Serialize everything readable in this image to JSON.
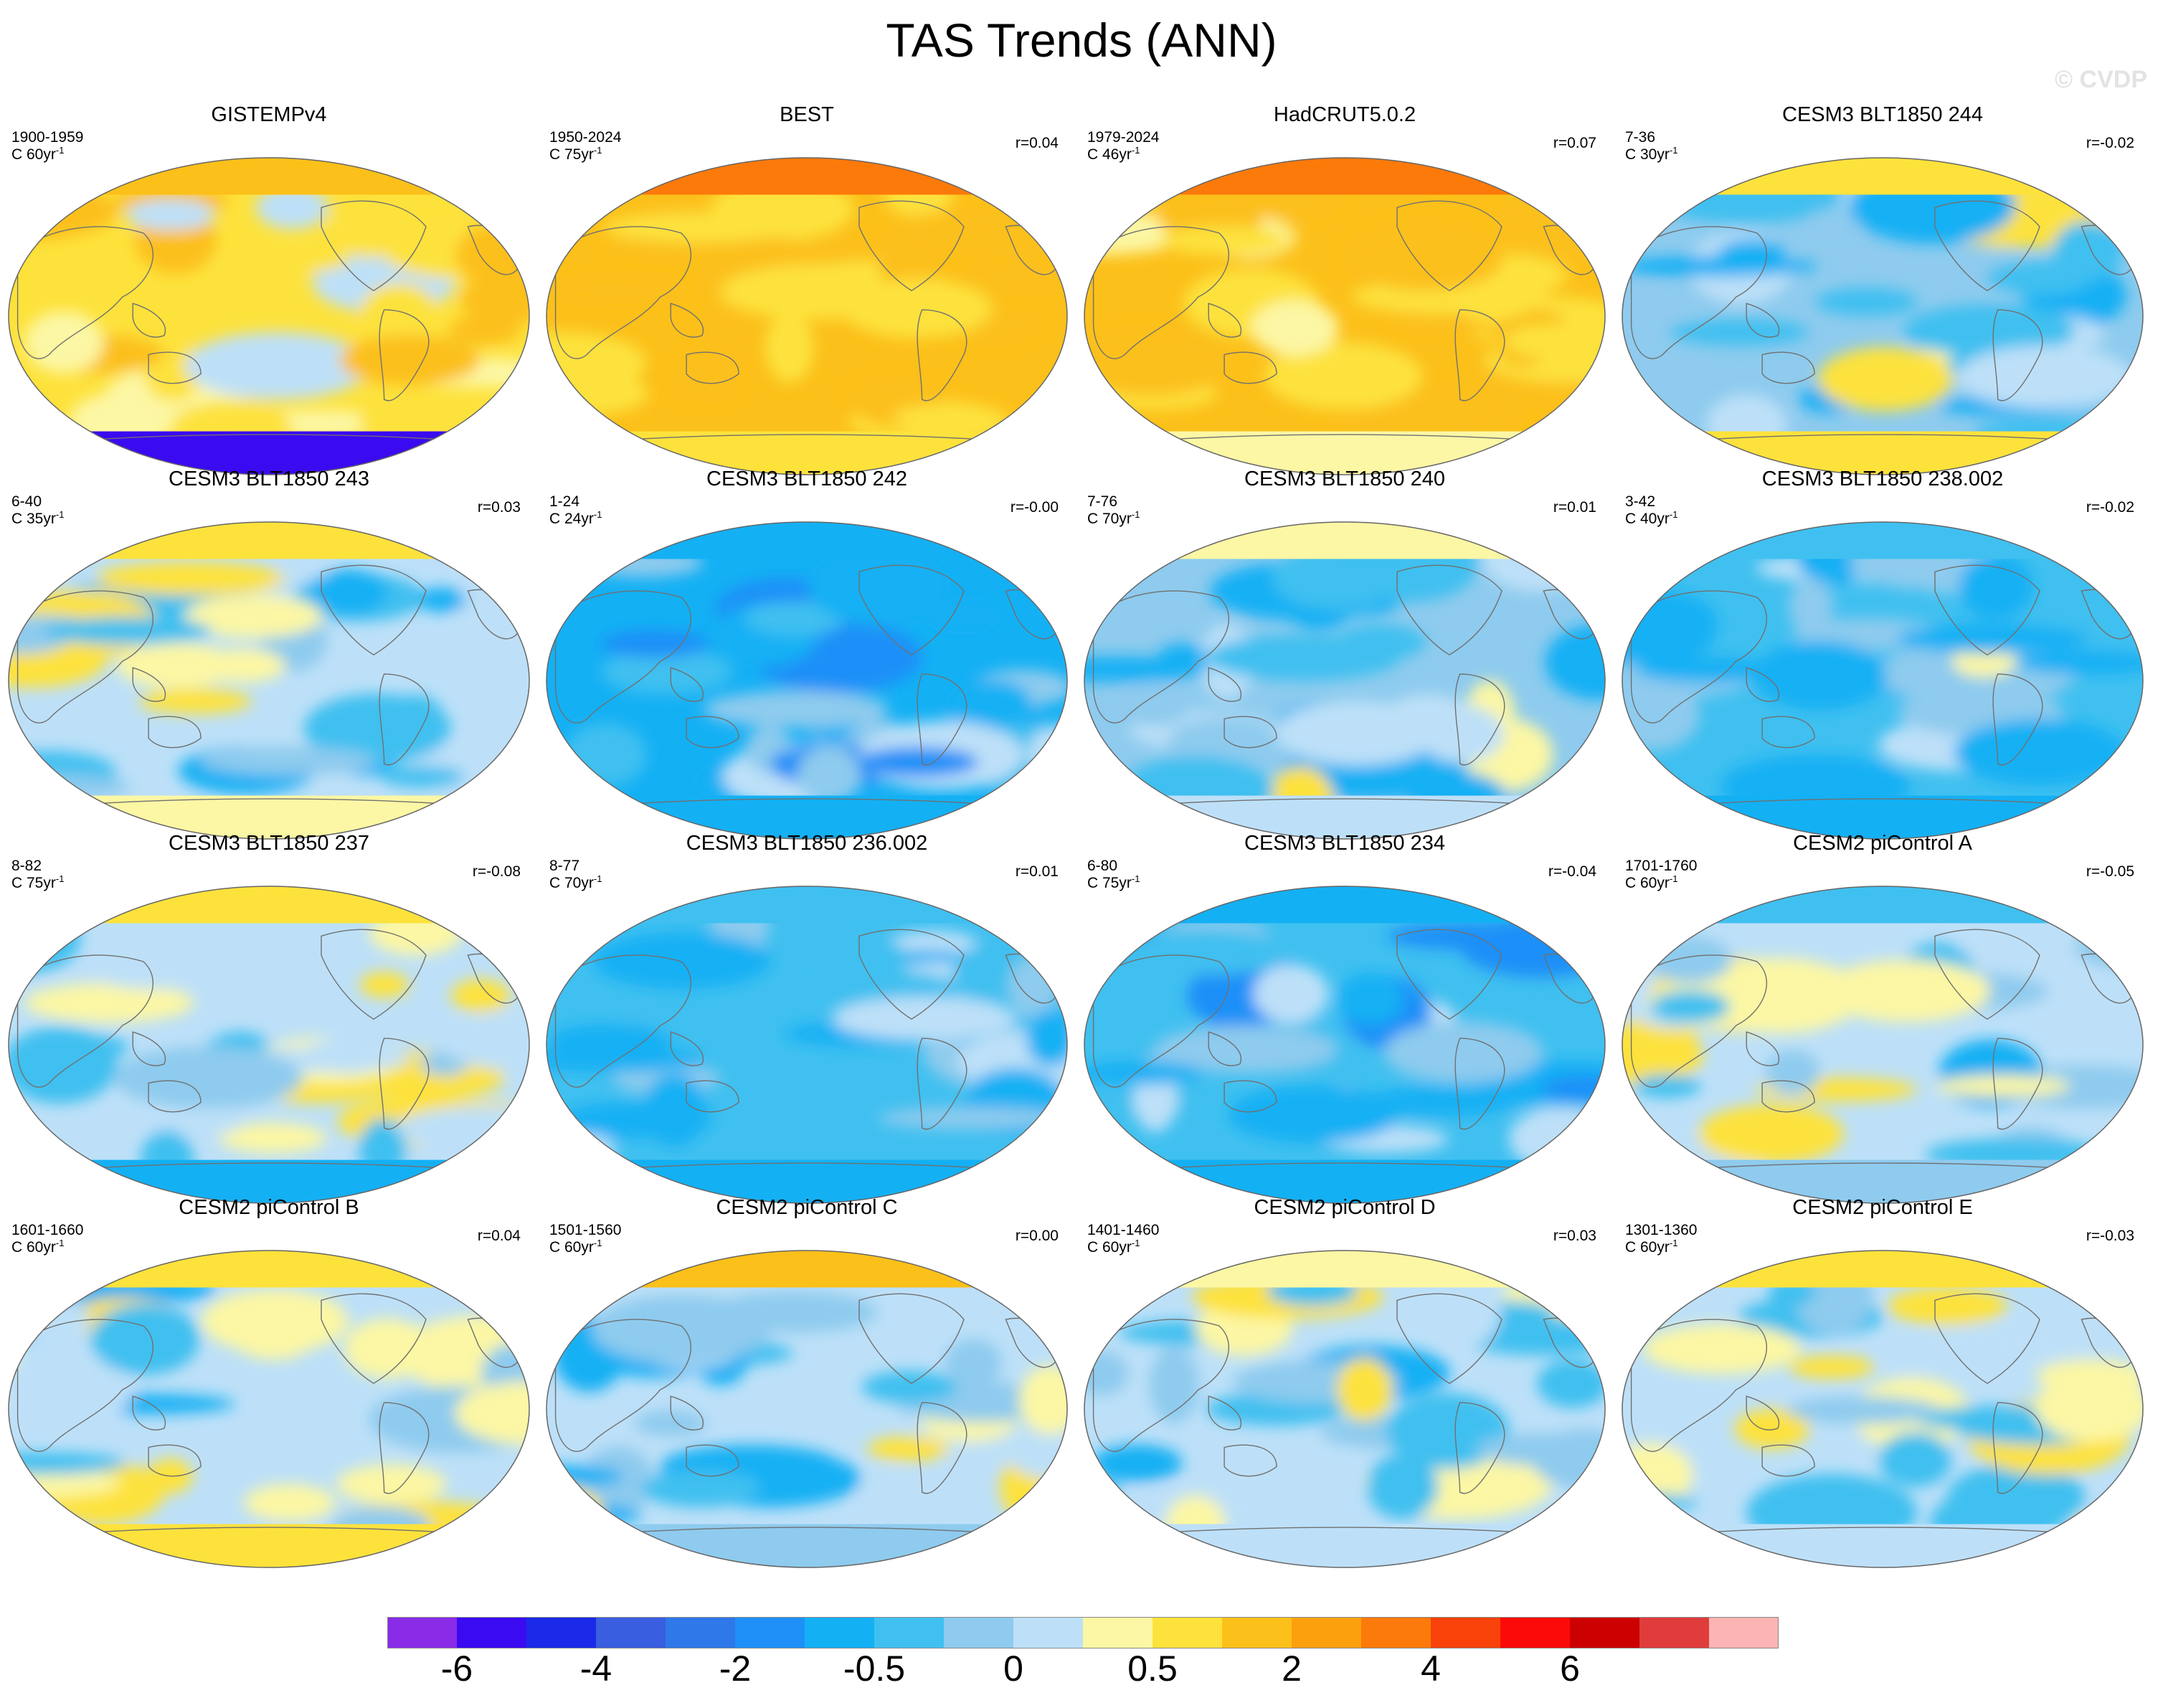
{
  "figure": {
    "title": "TAS Trends (ANN)",
    "watermark": "© CVDP"
  },
  "chart_data": {
    "type": "heatmap",
    "title": "TAS Trends (ANN)",
    "projection": "Robinson (Pacific-centered)",
    "panels": [
      {
        "title": "GISTEMPv4",
        "period": "1900-1959",
        "units": "C 60yr",
        "corr": "",
        "base_trend": 0.7,
        "arctic": 1.0,
        "antarctic": -6.0
      },
      {
        "title": "BEST",
        "period": "1950-2024",
        "units": "C 75yr",
        "corr": "r=0.04",
        "base_trend": 1.2,
        "arctic": 3.0,
        "antarctic": 0.5
      },
      {
        "title": "HadCRUT5.0.2",
        "period": "1979-2024",
        "units": "C 46yr",
        "corr": "r=0.07",
        "base_trend": 1.0,
        "arctic": 3.0,
        "antarctic": 0.4
      },
      {
        "title": "CESM3 BLT1850 244",
        "period": "7-36",
        "units": "C 30yr",
        "corr": "r=-0.02",
        "base_trend": -0.1,
        "arctic": 0.8,
        "antarctic": 0.8
      },
      {
        "title": "CESM3 BLT1850 243",
        "period": "6-40",
        "units": "C 35yr",
        "corr": "r=0.03",
        "base_trend": 0.0,
        "arctic": 0.6,
        "antarctic": 0.3
      },
      {
        "title": "CESM3 BLT1850 242",
        "period": "1-24",
        "units": "C 24yr",
        "corr": "r=-0.00",
        "base_trend": -0.6,
        "arctic": -1.0,
        "antarctic": -0.8
      },
      {
        "title": "CESM3 BLT1850 240",
        "period": "7-76",
        "units": "C 70yr",
        "corr": "r=0.01",
        "base_trend": -0.15,
        "arctic": 0.3,
        "antarctic": 0.2
      },
      {
        "title": "CESM3 BLT1850 238.002",
        "period": "3-42",
        "units": "C 40yr",
        "corr": "r=-0.02",
        "base_trend": -0.3,
        "arctic": -0.5,
        "antarctic": -0.6
      },
      {
        "title": "CESM3 BLT1850 237",
        "period": "8-82",
        "units": "C 75yr",
        "corr": "r=-0.08",
        "base_trend": 0.2,
        "arctic": 0.8,
        "antarctic": -0.8
      },
      {
        "title": "CESM3 BLT1850 236.002",
        "period": "8-77",
        "units": "C 70yr",
        "corr": "r=0.01",
        "base_trend": -0.4,
        "arctic": -0.3,
        "antarctic": -0.6
      },
      {
        "title": "CESM3 BLT1850 234",
        "period": "6-80",
        "units": "C 75yr",
        "corr": "r=-0.04",
        "base_trend": -0.5,
        "arctic": -0.6,
        "antarctic": -0.8
      },
      {
        "title": "CESM2 piControl A",
        "period": "1701-1760",
        "units": "C 60yr",
        "corr": "r=-0.05",
        "base_trend": 0.05,
        "arctic": -0.3,
        "antarctic": -0.2
      },
      {
        "title": "CESM2 piControl B",
        "period": "1601-1660",
        "units": "C 60yr",
        "corr": "r=0.04",
        "base_trend": 0.1,
        "arctic": 0.7,
        "antarctic": 0.6
      },
      {
        "title": "CESM2 piControl C",
        "period": "1501-1560",
        "units": "C 60yr",
        "corr": "r=0.00",
        "base_trend": 0.0,
        "arctic": 1.0,
        "antarctic": -0.1
      },
      {
        "title": "CESM2 piControl D",
        "period": "1401-1460",
        "units": "C 60yr",
        "corr": "r=0.03",
        "base_trend": 0.05,
        "arctic": 0.4,
        "antarctic": 0.0
      },
      {
        "title": "CESM2 piControl E",
        "period": "1301-1360",
        "units": "C 60yr",
        "corr": "r=-0.03",
        "base_trend": 0.15,
        "arctic": 0.5,
        "antarctic": 0.2
      }
    ],
    "colorbar": {
      "colors": [
        "#8a2be8",
        "#3a0af0",
        "#1a2ae8",
        "#3a5ee0",
        "#2e78ea",
        "#1e90f8",
        "#14b0f4",
        "#40c0f0",
        "#8ecbee",
        "#bde0f8",
        "#fcf7a4",
        "#fde23c",
        "#fcc01a",
        "#fca00e",
        "#fc7a0a",
        "#f8420a",
        "#fc0a0a",
        "#cc0000",
        "#e03c3c",
        "#fcb4b4"
      ],
      "bounds": [
        -8,
        -6,
        -5,
        -4,
        -3,
        -2,
        -1,
        -0.5,
        -0.25,
        0,
        0.25,
        0.5,
        1,
        2,
        3,
        4,
        5,
        6,
        7,
        8
      ],
      "tick_labels": [
        "-6",
        "-4",
        "-2",
        "-0.5",
        "0",
        "0.5",
        "2",
        "4",
        "6"
      ],
      "tick_bounds": [
        -6,
        -4,
        -2,
        -0.5,
        0,
        0.5,
        2,
        4,
        6
      ]
    },
    "ocean_color": "#bde0f8",
    "coast_color": "#707070"
  }
}
